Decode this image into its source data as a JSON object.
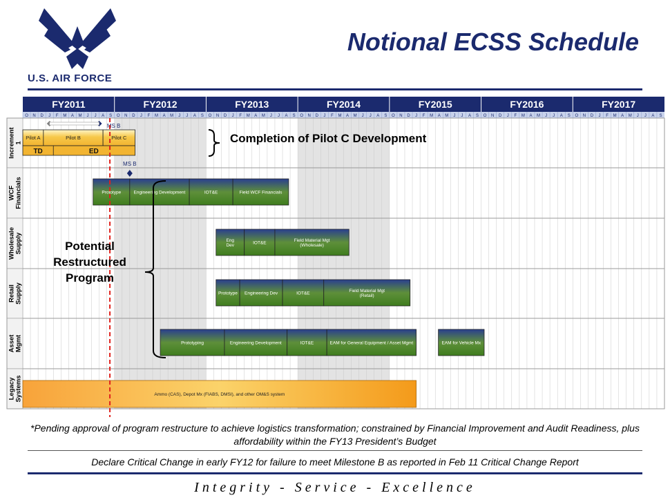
{
  "header": {
    "title": "Notional ECSS Schedule",
    "brand_text": "U.S. AIR FORCE"
  },
  "colors": {
    "navy": "#1b2a6e",
    "bar_green": "#3f7d1e",
    "bar_blue": "#2a3f8f",
    "pilot_yellow": "#f2b431",
    "legacy_orange": "#f49a1a",
    "shade_gray": "#d9d9d9",
    "red_line": "#e0211c"
  },
  "timeline": {
    "fiscal_years": [
      "FY2011",
      "FY2012",
      "FY2013",
      "FY2014",
      "FY2015",
      "FY2016",
      "FY2017"
    ],
    "months": [
      "O",
      "N",
      "D",
      "J",
      "F",
      "M",
      "A",
      "M",
      "J",
      "J",
      "A",
      "S"
    ]
  },
  "rows": [
    {
      "id": "increment1",
      "label": "Increment 1"
    },
    {
      "id": "wcf",
      "label": "WCF Financials"
    },
    {
      "id": "wholesale",
      "label": "Wholesale Supply"
    },
    {
      "id": "retail",
      "label": "Retail Supply"
    },
    {
      "id": "asset",
      "label": "Asset Mgmt"
    },
    {
      "id": "legacy",
      "label": "Legacy Systems"
    }
  ],
  "increment1": {
    "pilots": [
      "Pilot A",
      "Pilot B",
      "Pilot C"
    ],
    "phases": [
      "TD",
      "ED"
    ],
    "milestone": "MS B",
    "annotation": "Completion of Pilot C Development"
  },
  "wcf": {
    "milestone": "MS B",
    "bars": [
      "Prototype",
      "Engineering Development",
      "IOT&E",
      "Field WCF Financials"
    ]
  },
  "wholesale": {
    "bars": [
      "Eng Dev",
      "IOT&E",
      "Field Material Mgt (Wholesale)"
    ]
  },
  "retail": {
    "bars": [
      "Prototype",
      "Engineering Dev",
      "IOT&E",
      "Field Material Mgt (Retail)"
    ]
  },
  "asset": {
    "bars": [
      "Prototyping",
      "Engineering Development",
      "IOT&E",
      "EAM for General Equipment / Asset Mgmt",
      "EAM for Vehicle Mx"
    ]
  },
  "legacy": {
    "bar": "Ammo (CAS), Depot Mx (FIABS, DMSI), and other OM&S system"
  },
  "restructure_label": "Potential Restructured Program",
  "footnotes": {
    "pending": "*Pending approval of program restructure to achieve logistics transformation; constrained by Financial Improvement and Audit Readiness, plus affordability within the FY13 President’s Budget",
    "declare": "Declare Critical Change in early FY12 for failure to meet Milestone B as reported in Feb 11 Critical Change Report"
  },
  "motto": "Integrity - Service - Excellence"
}
